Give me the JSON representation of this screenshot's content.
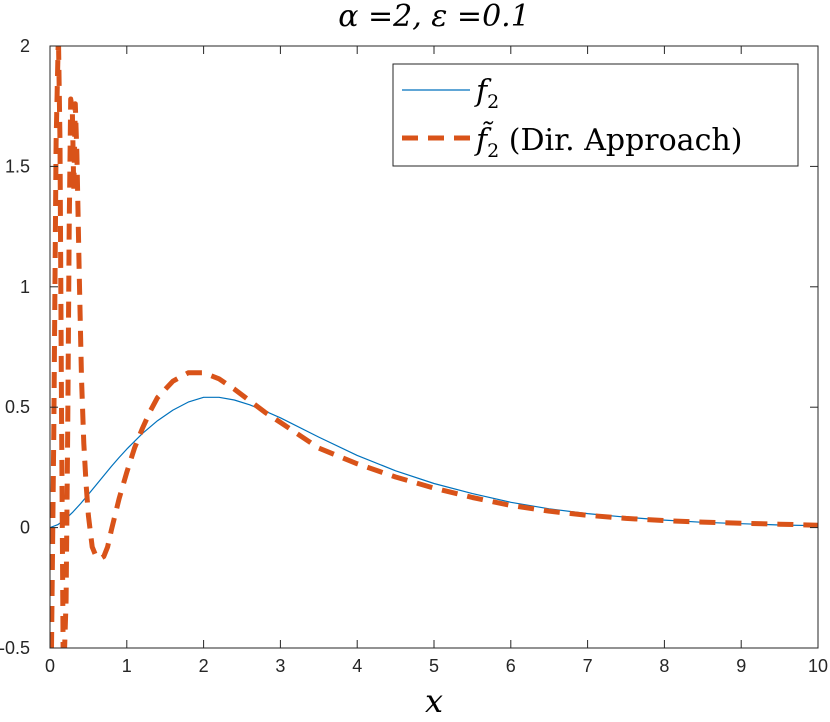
{
  "chart_data": {
    "type": "line",
    "title": "α =2, ε =0.1",
    "xlabel": "x",
    "ylabel": "",
    "xlim": [
      0,
      10
    ],
    "ylim": [
      -0.5,
      2
    ],
    "xticks": [
      "0",
      "1",
      "2",
      "3",
      "4",
      "5",
      "6",
      "7",
      "8",
      "9",
      "10"
    ],
    "yticks": [
      "-0.5",
      "0",
      "0.5",
      "1",
      "1.5",
      "2"
    ],
    "legend": "top-right",
    "grid": false,
    "series": [
      {
        "name": "f",
        "name_sub": "2",
        "style": "solid",
        "color": "#0072BD",
        "x": [
          0,
          0.1,
          0.2,
          0.3,
          0.4,
          0.5,
          0.6,
          0.7,
          0.8,
          0.9,
          1.0,
          1.2,
          1.4,
          1.6,
          1.8,
          2.0,
          2.2,
          2.4,
          2.6,
          2.8,
          3.0,
          3.5,
          4.0,
          4.5,
          5.0,
          5.5,
          6.0,
          6.5,
          7.0,
          7.5,
          8.0,
          8.5,
          9.0,
          9.5,
          10.0
        ],
        "y": [
          0,
          0.012,
          0.035,
          0.065,
          0.1,
          0.138,
          0.177,
          0.216,
          0.254,
          0.291,
          0.326,
          0.39,
          0.444,
          0.488,
          0.521,
          0.541,
          0.541,
          0.53,
          0.51,
          0.484,
          0.456,
          0.376,
          0.3,
          0.236,
          0.183,
          0.141,
          0.105,
          0.078,
          0.058,
          0.043,
          0.031,
          0.022,
          0.016,
          0.011,
          0.008
        ]
      },
      {
        "name": "f̃",
        "name_sub": "2",
        "name_suffix": " (Dir. Approach)",
        "style": "dashed",
        "color": "#D95319",
        "x": [
          0.02,
          0.05,
          0.08,
          0.11,
          0.13,
          0.15,
          0.17,
          0.19,
          0.21,
          0.23,
          0.25,
          0.27,
          0.29,
          0.31,
          0.33,
          0.35,
          0.38,
          0.41,
          0.44,
          0.47,
          0.5,
          0.55,
          0.6,
          0.65,
          0.7,
          0.75,
          0.8,
          0.9,
          1.0,
          1.1,
          1.2,
          1.3,
          1.4,
          1.6,
          1.8,
          2.0,
          2.2,
          2.4,
          2.6,
          2.8,
          3.0,
          3.5,
          4.0,
          4.5,
          5.0,
          5.5,
          6.0,
          6.5,
          7.0,
          7.5,
          8.0,
          8.5,
          9.0,
          9.5,
          10.0
        ],
        "y": [
          -0.5,
          0.4,
          1.6,
          2.05,
          1.6,
          0.5,
          -0.5,
          -0.5,
          -0.3,
          0.4,
          1.25,
          1.78,
          1.74,
          1.4,
          1.76,
          1.55,
          1.06,
          0.62,
          0.35,
          0.18,
          0.05,
          -0.08,
          -0.12,
          -0.13,
          -0.12,
          -0.08,
          -0.01,
          0.12,
          0.23,
          0.33,
          0.41,
          0.48,
          0.54,
          0.608,
          0.643,
          0.643,
          0.618,
          0.575,
          0.527,
          0.479,
          0.437,
          0.33,
          0.265,
          0.21,
          0.164,
          0.125,
          0.092,
          0.068,
          0.051,
          0.038,
          0.029,
          0.023,
          0.018,
          0.014,
          0.01
        ]
      }
    ]
  }
}
